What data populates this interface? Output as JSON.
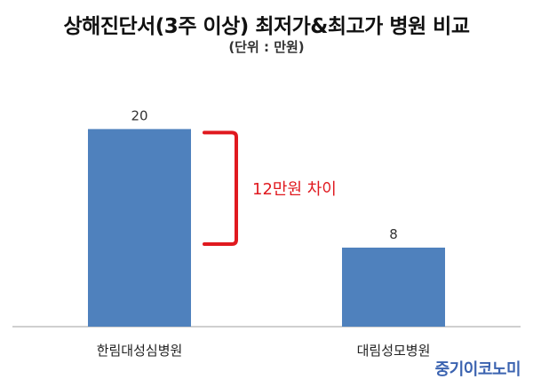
{
  "title": "상해진단서(3주 이상) 최저가&최고가 병원 비교",
  "subtitle": "(단위 : 만원)",
  "annotation": "12만원 차이",
  "watermark": "중기이코노미",
  "colors": {
    "bar": "#4f81bd",
    "annotation": "#e0191f",
    "axis": "#bfbfbf"
  },
  "chart_data": {
    "type": "bar",
    "title": "상해진단서(3주 이상) 최저가&최고가 병원 비교",
    "subtitle": "(단위 : 만원)",
    "categories": [
      "한림대성심병원",
      "대림성모병원"
    ],
    "values": [
      20,
      8
    ],
    "data_labels": [
      "20",
      "8"
    ],
    "ylim": [
      0,
      23
    ],
    "grid": false,
    "annotations": [
      "12만원 차이"
    ]
  }
}
